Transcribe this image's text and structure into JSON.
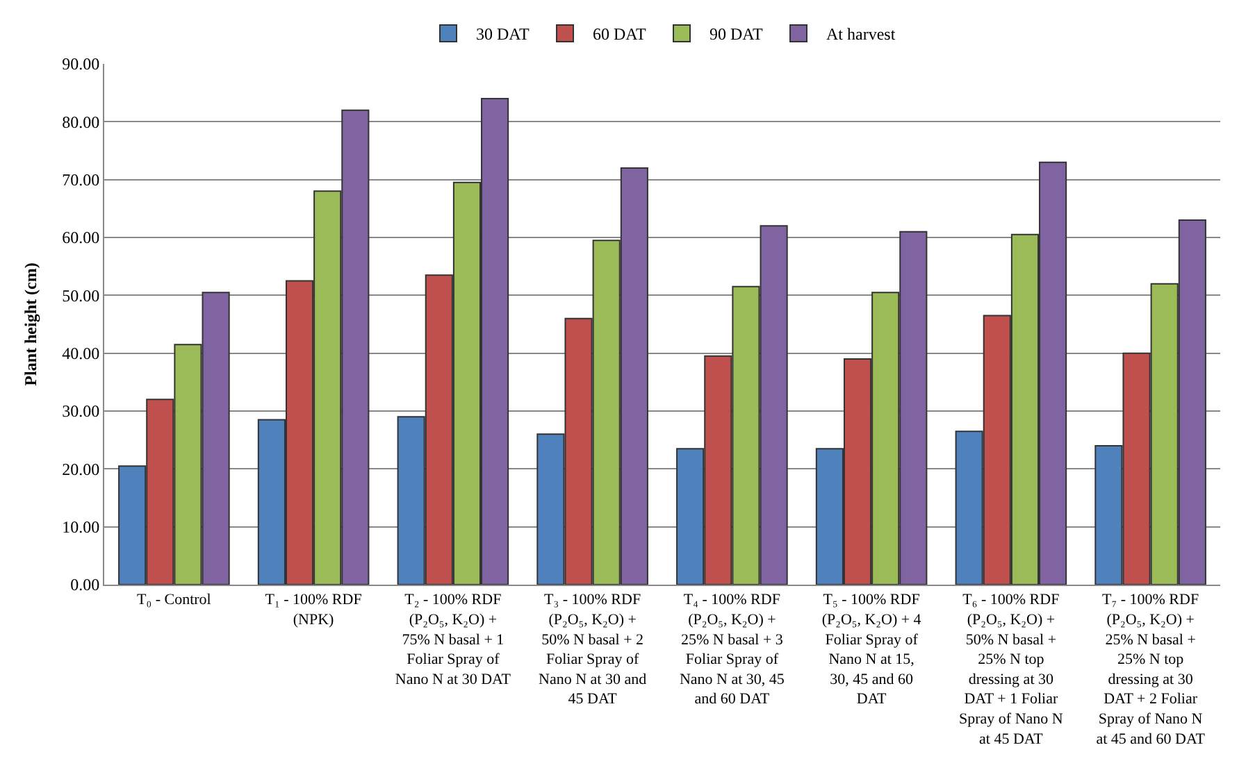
{
  "chart_data": {
    "type": "bar",
    "ylabel": "Plant height (cm)",
    "categories": [
      "T₀ - Control",
      "T₁ - 100% RDF (NPK)",
      "T₂ - 100% RDF (P₂O₅, K₂O) + 75% N basal + 1 Foliar Spray of Nano N at 30 DAT",
      "T₃ - 100% RDF (P₂O₅, K₂O) + 50% N basal + 2 Foliar Spray of Nano N at 30 and 45 DAT",
      "T₄ - 100% RDF (P₂O₅, K₂O) + 25% N basal + 3 Foliar Spray of Nano N at 30, 45 and 60 DAT",
      "T₅ - 100% RDF (P₂O₅, K₂O) + 4 Foliar Spray of Nano N at 15, 30, 45 and 60 DAT",
      "T₆ - 100% RDF (P₂O₅, K₂O) + 50% N basal + 25% N top dressing at 30 DAT + 1 Foliar Spray of Nano N at 45 DAT",
      "T₇ - 100% RDF (P₂O₅, K₂O) + 25% N basal + 25% N top dressing at 30 DAT + 2 Foliar Spray of Nano N at 45 and 60 DAT"
    ],
    "series": [
      {
        "name": "30 DAT",
        "color": "#4f81bd",
        "values": [
          20.5,
          28.5,
          29,
          26,
          23.5,
          23.5,
          26.5,
          24
        ]
      },
      {
        "name": "60 DAT",
        "color": "#c0504d",
        "values": [
          32,
          52.5,
          53.5,
          46,
          39.5,
          39,
          46.5,
          40
        ]
      },
      {
        "name": "90 DAT",
        "color": "#9bbb59",
        "values": [
          41.5,
          68,
          69.5,
          59.5,
          51.5,
          50.5,
          60.5,
          52
        ]
      },
      {
        "name": "At harvest",
        "color": "#8064a2",
        "values": [
          50.5,
          82,
          84,
          72,
          62,
          61,
          73,
          63
        ]
      }
    ],
    "ylim": [
      0,
      90
    ],
    "yticks": [
      {
        "value": 0,
        "label": "0.00"
      },
      {
        "value": 10,
        "label": "10.00"
      },
      {
        "value": 20,
        "label": "20.00"
      },
      {
        "value": 30,
        "label": "30.00"
      },
      {
        "value": 40,
        "label": "40.00"
      },
      {
        "value": 50,
        "label": "50.00"
      },
      {
        "value": 60,
        "label": "60.00"
      },
      {
        "value": 70,
        "label": "70.00"
      },
      {
        "value": 80,
        "label": "80.00"
      },
      {
        "value": 90,
        "label": "90.00"
      }
    ],
    "grid": "y",
    "legend": "top"
  }
}
